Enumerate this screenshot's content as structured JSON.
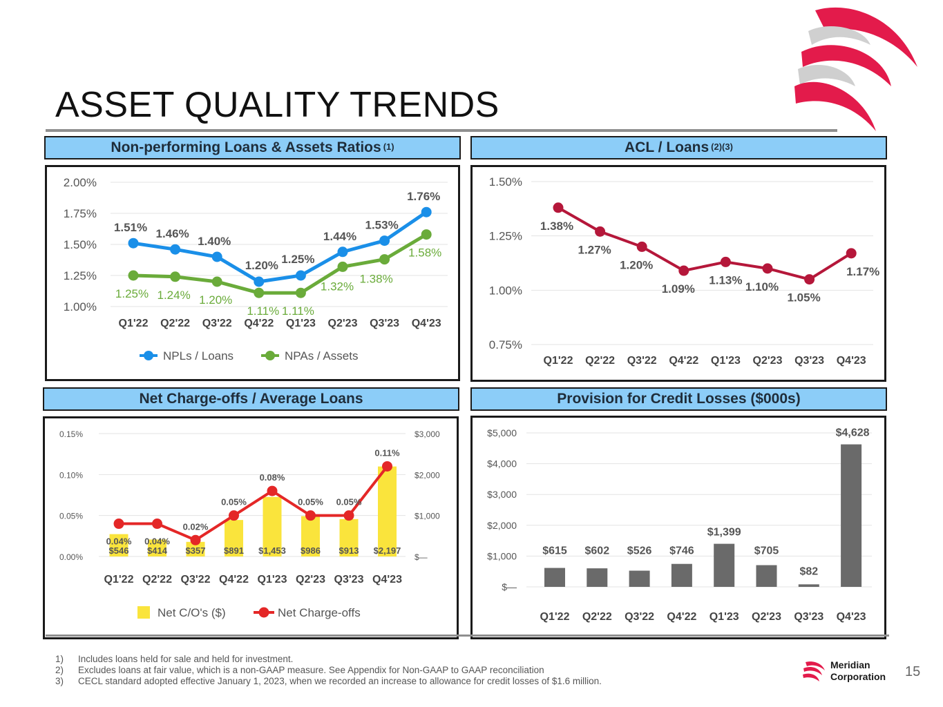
{
  "title": "ASSET QUALITY TRENDS",
  "colors": {
    "brand_red": "#e31b4b",
    "npl_blue": "#1a8fe8",
    "npa_green": "#6aab3a",
    "acl_red": "#b5173a",
    "nco_yellow": "#fae43c",
    "nco_red": "#e42727",
    "bar_gray": "#6a6a6a",
    "header_blue": "#8ccdf8"
  },
  "panels": {
    "npl": {
      "header": "Non-performing Loans & Assets Ratios",
      "sup": "(1)"
    },
    "acl": {
      "header": "ACL / Loans",
      "sup": "(2)(3)"
    },
    "nco": {
      "header": "Net Charge-offs / Average Loans",
      "sup": ""
    },
    "provision": {
      "header": "Provision for Credit Losses ($000s)",
      "sup": ""
    }
  },
  "chart_data": [
    {
      "id": "npl",
      "type": "line",
      "categories": [
        "Q1'22",
        "Q2'22",
        "Q3'22",
        "Q4'22",
        "Q1'23",
        "Q2'23",
        "Q3'23",
        "Q4'23"
      ],
      "ylim": [
        1.0,
        2.0
      ],
      "yticks": [
        "1.00%",
        "1.25%",
        "1.50%",
        "1.75%",
        "2.00%"
      ],
      "series": [
        {
          "name": "NPLs / Loans",
          "values": [
            1.51,
            1.46,
            1.4,
            1.2,
            1.25,
            1.44,
            1.53,
            1.76
          ],
          "labels": [
            "1.51%",
            "1.46%",
            "1.40%",
            "1.20%",
            "1.25%",
            "1.44%",
            "1.53%",
            "1.76%"
          ]
        },
        {
          "name": "NPAs / Assets",
          "values": [
            1.25,
            1.24,
            1.2,
            1.11,
            1.11,
            1.32,
            1.38,
            1.58
          ],
          "labels": [
            "1.25%",
            "1.24%",
            "1.20%",
            "1.11%",
            "1.11%",
            "1.32%",
            "1.38%",
            "1.58%"
          ]
        }
      ],
      "legend": "bottom"
    },
    {
      "id": "acl",
      "type": "line",
      "categories": [
        "Q1'22",
        "Q2'22",
        "Q3'22",
        "Q4'22",
        "Q1'23",
        "Q2'23",
        "Q3'23",
        "Q4'23"
      ],
      "ylim": [
        0.75,
        1.5
      ],
      "yticks": [
        "0.75%",
        "1.00%",
        "1.25%",
        "1.50%"
      ],
      "series": [
        {
          "name": "ACL / Loans",
          "values": [
            1.38,
            1.27,
            1.2,
            1.09,
            1.13,
            1.1,
            1.05,
            1.17
          ],
          "labels": [
            "1.38%",
            "1.27%",
            "1.20%",
            "1.09%",
            "1.13%",
            "1.10%",
            "1.05%",
            "1.17%"
          ]
        }
      ]
    },
    {
      "id": "nco",
      "type": "bar",
      "categories": [
        "Q1'22",
        "Q2'22",
        "Q3'22",
        "Q4'22",
        "Q1'23",
        "Q2'23",
        "Q3'23",
        "Q4'23"
      ],
      "left_ylim": [
        0,
        0.15
      ],
      "left_yticks": [
        "0.00%",
        "0.05%",
        "0.10%",
        "0.15%"
      ],
      "right_ylim": [
        0,
        3000
      ],
      "right_yticks": [
        "$—",
        "$1,000",
        "$2,000",
        "$3,000"
      ],
      "series": [
        {
          "name": "Net C/O's ($)",
          "axis": "right",
          "values": [
            546,
            414,
            357,
            891,
            1453,
            986,
            913,
            2197
          ],
          "labels": [
            "$546",
            "$414",
            "$357",
            "$891",
            "$1,453",
            "$986",
            "$913",
            "$2,197"
          ]
        },
        {
          "name": "Net Charge-offs",
          "axis": "left",
          "values": [
            0.04,
            0.04,
            0.02,
            0.05,
            0.08,
            0.05,
            0.05,
            0.11
          ],
          "labels": [
            "0.04%",
            "0.04%",
            "0.02%",
            "0.05%",
            "0.08%",
            "0.05%",
            "0.05%",
            "0.11%"
          ]
        }
      ],
      "legend": "bottom"
    },
    {
      "id": "provision",
      "type": "bar",
      "categories": [
        "Q1'22",
        "Q2'22",
        "Q3'22",
        "Q4'22",
        "Q1'23",
        "Q2'23",
        "Q3'23",
        "Q4'23"
      ],
      "ylim": [
        0,
        5000
      ],
      "yticks": [
        "$—",
        "$1,000",
        "$2,000",
        "$3,000",
        "$4,000",
        "$5,000"
      ],
      "series": [
        {
          "name": "Provision for Credit Losses",
          "values": [
            615,
            602,
            526,
            746,
            1399,
            705,
            82,
            4628
          ],
          "labels": [
            "$615",
            "$602",
            "$526",
            "$746",
            "$1,399",
            "$705",
            "$82",
            "$4,628"
          ]
        }
      ]
    }
  ],
  "footnotes": [
    {
      "num": "1)",
      "text": "Includes loans held for sale and held for investment."
    },
    {
      "num": "2)",
      "text": "Excludes loans at fair value,  which is a non-GAAP measure. See Appendix for Non-GAAP to GAAP reconciliation"
    },
    {
      "num": "3)",
      "text": "CECL standard adopted effective January 1, 2023, when we recorded an increase to allowance for credit losses of $1.6 million."
    }
  ],
  "brand": {
    "line1": "Meridian",
    "line2": "Corporation"
  },
  "page_number": "15"
}
